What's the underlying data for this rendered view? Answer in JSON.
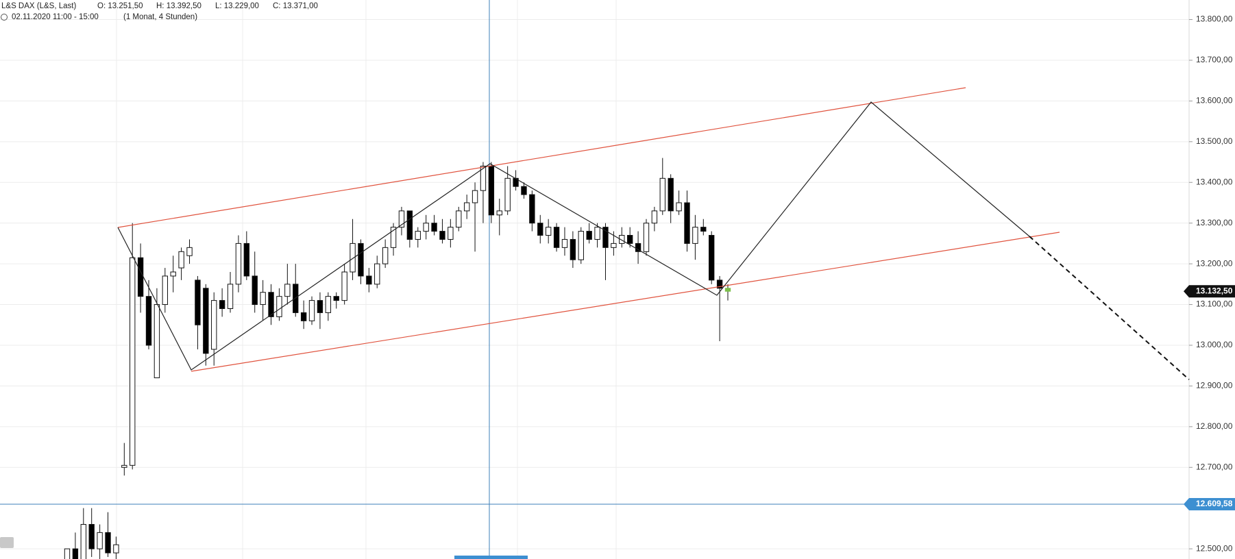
{
  "chart_data": {
    "type": "candlestick",
    "title": "L&S DAX (L&S, Last)",
    "ohlc_info": [
      "O: 13.251,50",
      "H: 13.392,50",
      "L: 13.229,00",
      "C: 13.371,00"
    ],
    "subtitle": "02.11.2020 11:00 - 15:00",
    "range_info": "(1 Monat, 4 Stunden)",
    "up_color": "#ffffff",
    "down_color": "#000000",
    "last_color": "#7cc04a",
    "grid": true,
    "ylim": [
      12475,
      13848
    ],
    "yticks": [
      {
        "value": 13800,
        "label": "13.800,00"
      },
      {
        "value": 13700,
        "label": "13.700,00"
      },
      {
        "value": 13600,
        "label": "13.600,00"
      },
      {
        "value": 13500,
        "label": "13.500,00"
      },
      {
        "value": 13400,
        "label": "13.400,00"
      },
      {
        "value": 13300,
        "label": "13.300,00"
      },
      {
        "value": 13200,
        "label": "13.200,00"
      },
      {
        "value": 13100,
        "label": "13.100,00"
      },
      {
        "value": 13000,
        "label": "13.000,00"
      },
      {
        "value": 12900,
        "label": "12.900,00"
      },
      {
        "value": 12800,
        "label": "12.800,00"
      },
      {
        "value": 12700,
        "label": "12.700,00"
      },
      {
        "value": 12500,
        "label": "12.500,00"
      }
    ],
    "last_price": {
      "value": 13132.5,
      "label": "13.132,50"
    },
    "crosshair_price": {
      "value": 12609.58,
      "label": "12.609,58"
    },
    "open": [
      12450,
      12500,
      12470,
      12560,
      12500,
      12540,
      12490,
      12700,
      12705,
      13215,
      13120,
      12920,
      13100,
      13170,
      13190,
      13220,
      13160,
      13140,
      12990,
      13110,
      13090,
      13150,
      13250,
      13170,
      13100,
      13130,
      13070,
      13120,
      13150,
      13080,
      13060,
      13110,
      13080,
      13120,
      13110,
      13180,
      13250,
      13170,
      13150,
      13200,
      13240,
      13290,
      13330,
      13260,
      13280,
      13300,
      13280,
      13260,
      13290,
      13330,
      13350,
      13380,
      13440,
      13320,
      13330,
      13410,
      13390,
      13370,
      13300,
      13270,
      13290,
      13240,
      13260,
      13210,
      13280,
      13260,
      13290,
      13240,
      13250,
      13270,
      13250,
      13230,
      13300,
      13330,
      13410,
      13330,
      13350,
      13250,
      13290,
      13270,
      13160,
      13140
    ],
    "high": [
      12500,
      12540,
      12600,
      12600,
      12560,
      12590,
      12530,
      12760,
      13300,
      13250,
      13160,
      13140,
      13190,
      13220,
      13240,
      13260,
      13170,
      13150,
      13130,
      13140,
      13180,
      13270,
      13280,
      13230,
      13160,
      13150,
      13140,
      13200,
      13200,
      13110,
      13120,
      13130,
      13130,
      13130,
      13200,
      13310,
      13260,
      13190,
      13220,
      13260,
      13300,
      13340,
      13330,
      13290,
      13320,
      13320,
      13310,
      13310,
      13340,
      13370,
      13400,
      13450,
      13450,
      13360,
      13440,
      13430,
      13400,
      13380,
      13320,
      13310,
      13300,
      13290,
      13280,
      13290,
      13300,
      13300,
      13300,
      13280,
      13290,
      13290,
      13280,
      13310,
      13340,
      13460,
      13420,
      13380,
      13380,
      13320,
      13310,
      13280,
      13170,
      13150
    ],
    "low": [
      12430,
      12470,
      12450,
      12480,
      12470,
      12480,
      12470,
      12680,
      12695,
      13080,
      12990,
      12920,
      13080,
      13130,
      13160,
      13200,
      12990,
      12950,
      12950,
      13070,
      13080,
      13130,
      13160,
      13080,
      13060,
      13050,
      13060,
      13100,
      13070,
      13040,
      13050,
      13040,
      13060,
      13090,
      13100,
      13160,
      13150,
      13130,
      13140,
      13190,
      13220,
      13270,
      13240,
      13240,
      13260,
      13270,
      13250,
      13240,
      13280,
      13310,
      13230,
      13300,
      13300,
      13270,
      13320,
      13380,
      13360,
      13280,
      13250,
      13250,
      13230,
      13220,
      13190,
      13200,
      13250,
      13240,
      13160,
      13220,
      13240,
      13240,
      13200,
      13220,
      13280,
      13320,
      13300,
      13320,
      13230,
      13210,
      13270,
      13150,
      13010,
      13110
    ],
    "close": [
      12500,
      12470,
      12560,
      12500,
      12540,
      12490,
      12510,
      12705,
      13215,
      13120,
      13000,
      13100,
      13170,
      13180,
      13230,
      13240,
      13050,
      12980,
      13110,
      13090,
      13150,
      13250,
      13170,
      13100,
      13130,
      13070,
      13120,
      13150,
      13080,
      13060,
      13110,
      13080,
      13120,
      13110,
      13180,
      13250,
      13170,
      13150,
      13200,
      13240,
      13290,
      13330,
      13260,
      13280,
      13300,
      13280,
      13260,
      13290,
      13330,
      13350,
      13380,
      13440,
      13320,
      13330,
      13410,
      13390,
      13370,
      13300,
      13270,
      13290,
      13240,
      13260,
      13210,
      13280,
      13260,
      13290,
      13240,
      13250,
      13270,
      13250,
      13230,
      13300,
      13330,
      13410,
      13330,
      13350,
      13250,
      13290,
      13280,
      13160,
      13140,
      13132.5
    ]
  }
}
